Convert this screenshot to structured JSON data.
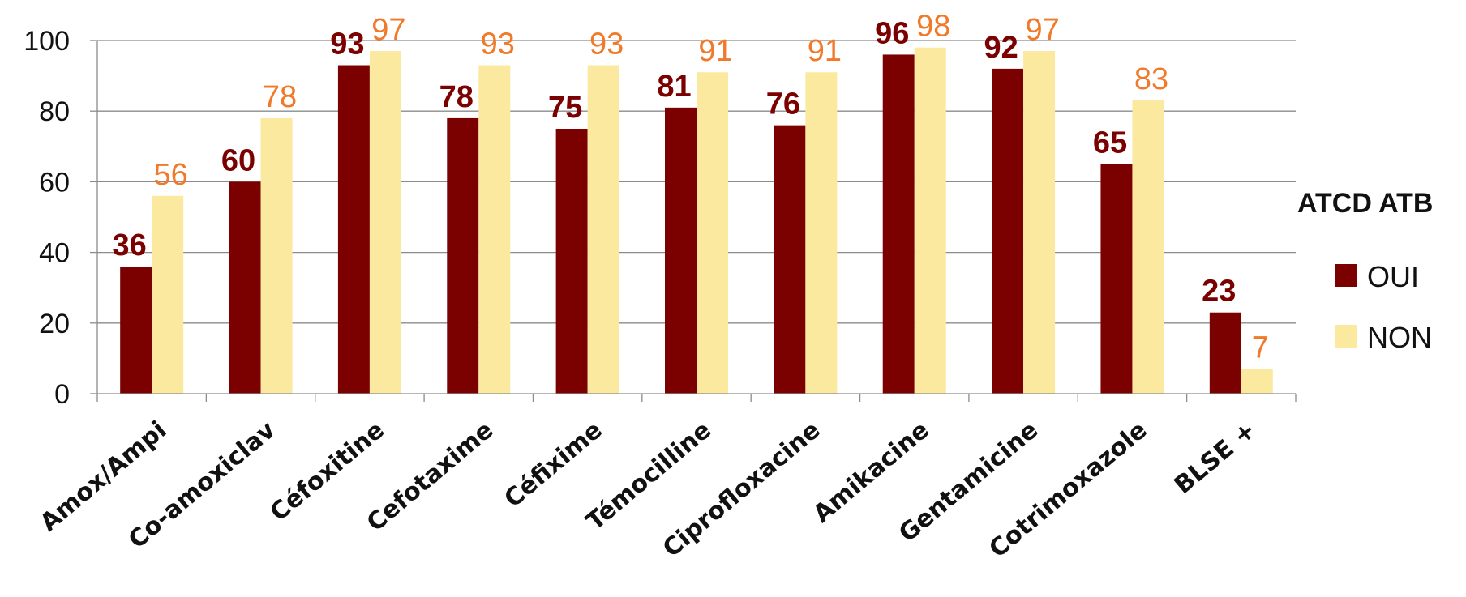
{
  "chart_data": {
    "type": "bar",
    "categories": [
      "Amox/Ampi",
      "Co-amoxiclav",
      "Céfoxitine",
      "Cefotaxime",
      "Céfixime",
      "Témocilline",
      "Ciprofloxacine",
      "Amikacine",
      "Gentamicine",
      "Cotrimoxazole",
      "BLSE +"
    ],
    "series": [
      {
        "name": "OUI",
        "values": [
          36,
          60,
          93,
          78,
          75,
          81,
          76,
          96,
          92,
          65,
          23
        ],
        "color": "#7b0000",
        "label_color": "#7b0000"
      },
      {
        "name": "NON",
        "values": [
          56,
          78,
          97,
          93,
          93,
          91,
          91,
          98,
          97,
          83,
          7
        ],
        "color": "#fbe99f",
        "label_color": "#f07a2a"
      }
    ],
    "yticks": [
      0,
      20,
      40,
      60,
      80,
      100
    ],
    "ylim": [
      0,
      100
    ],
    "grid": true,
    "legend": {
      "title": "ATCD ATB",
      "position": "right"
    }
  }
}
